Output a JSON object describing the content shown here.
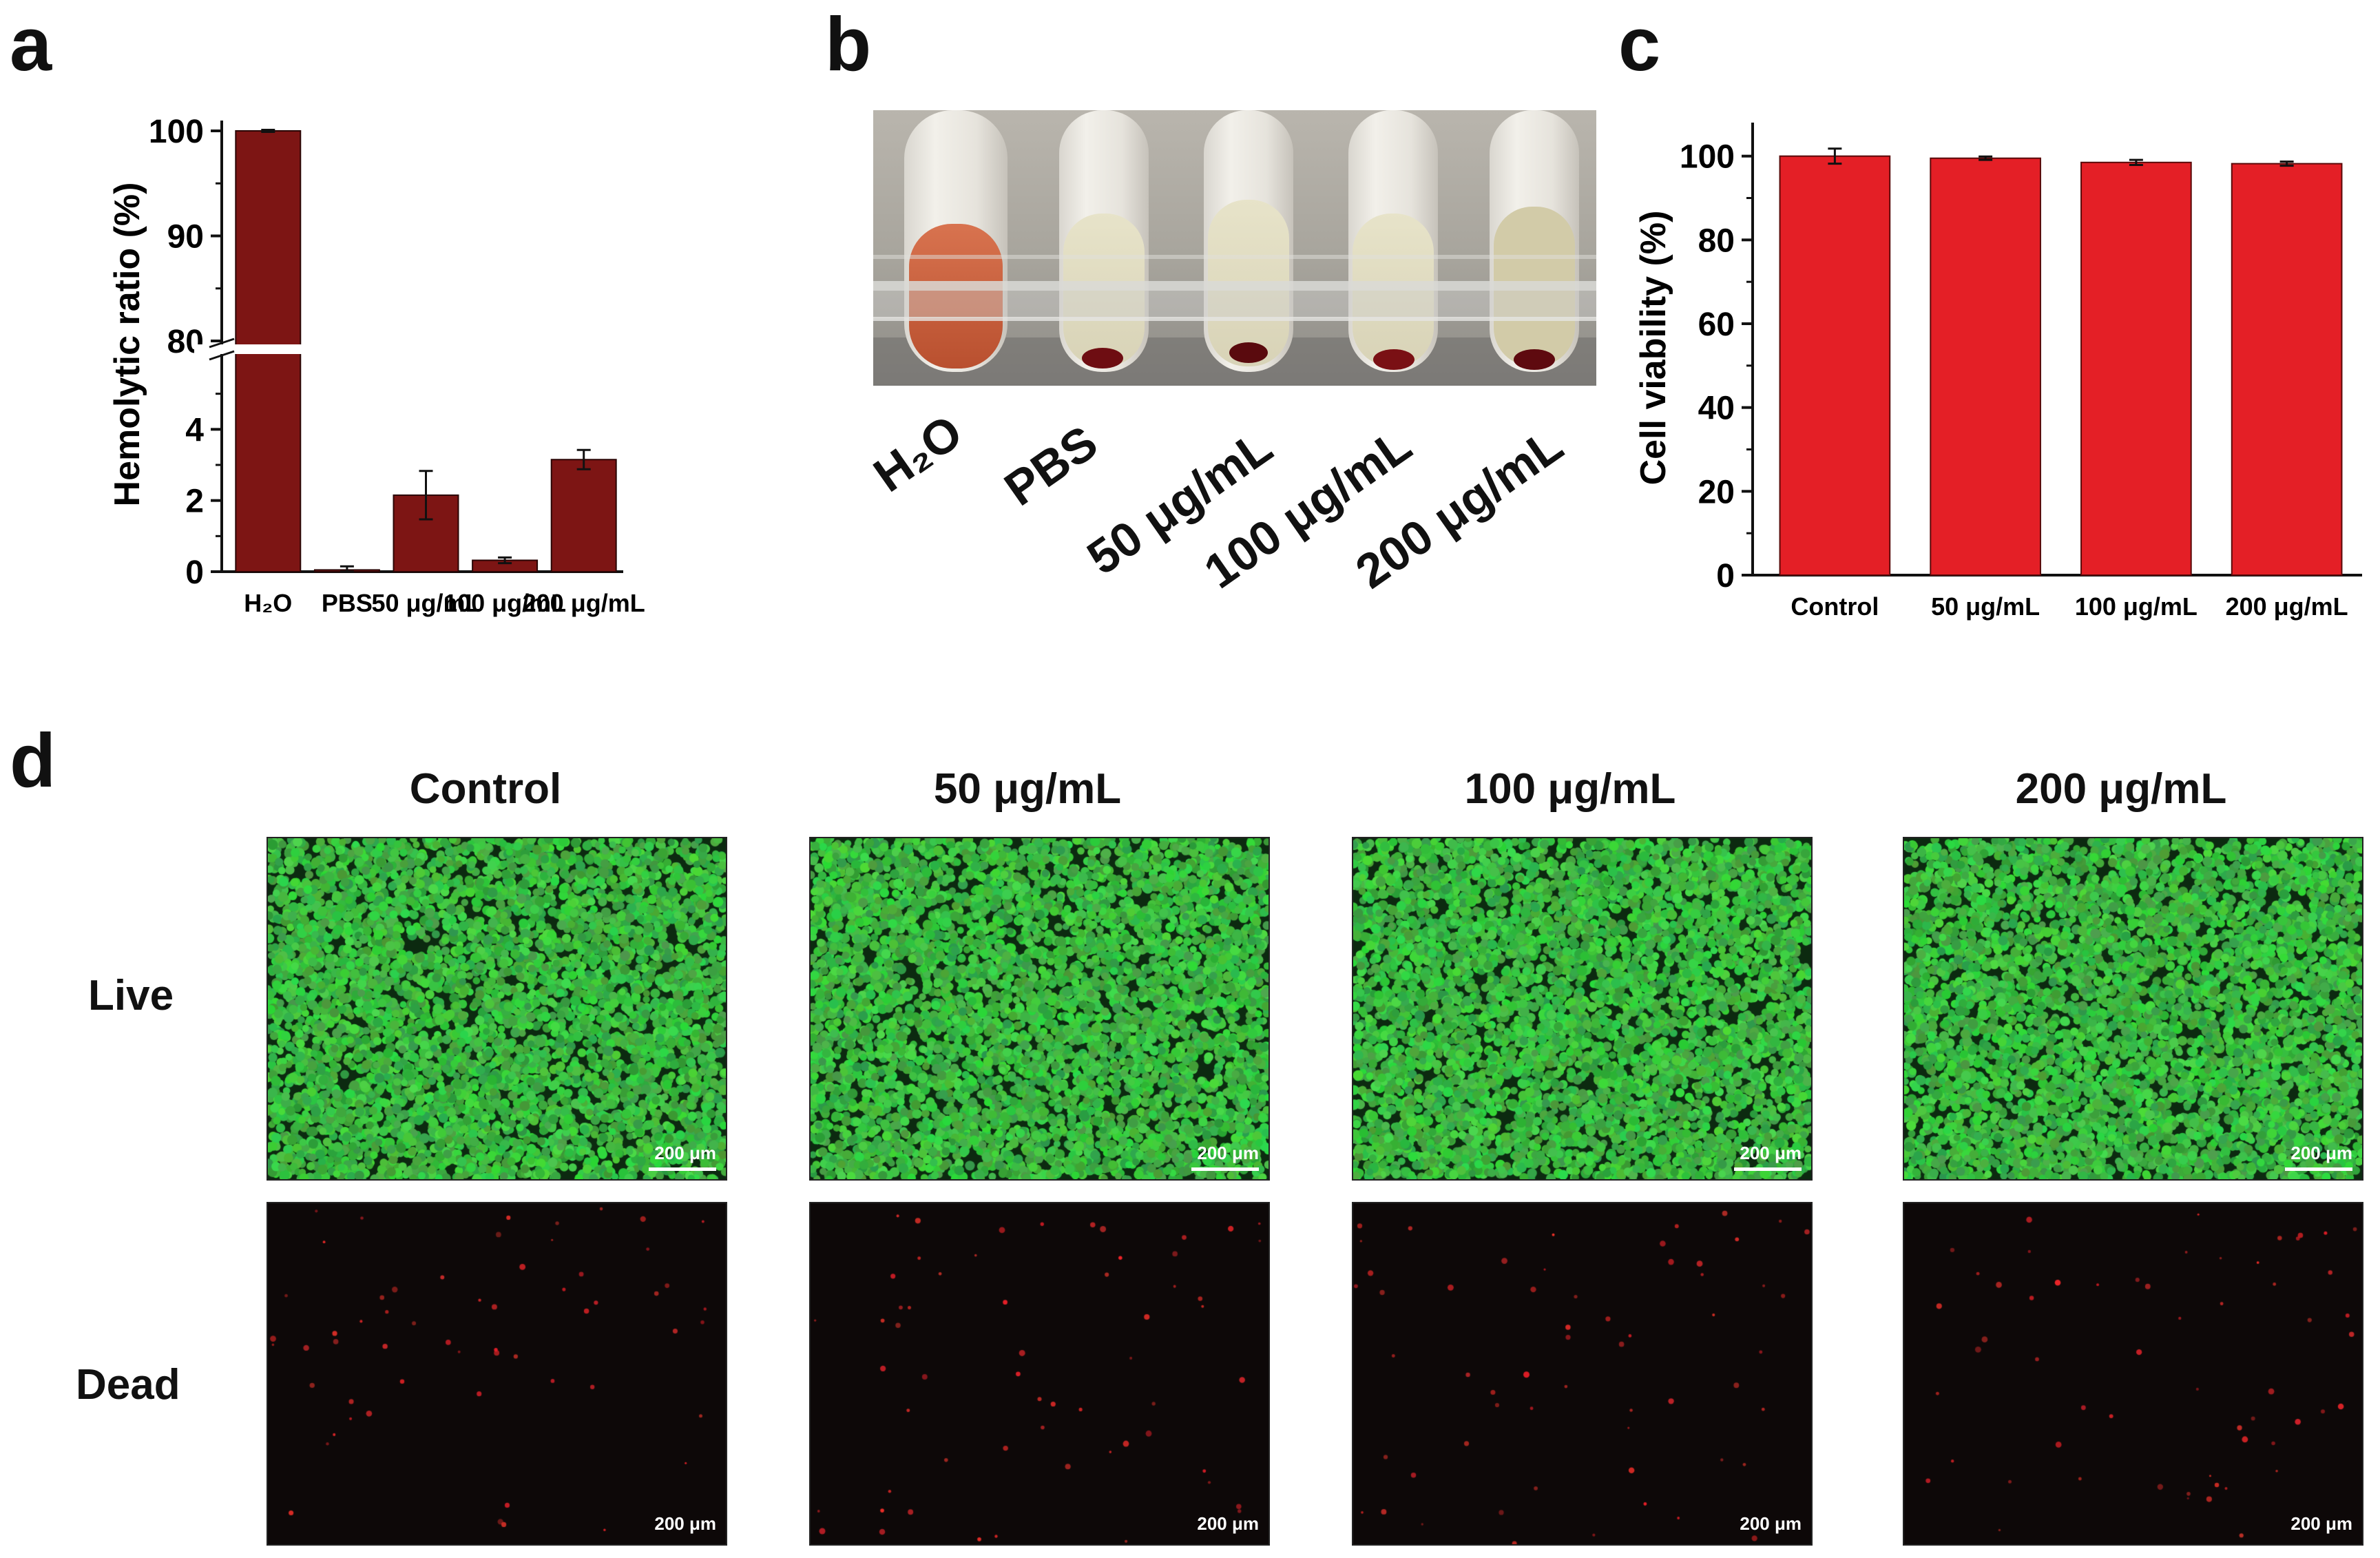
{
  "panels": {
    "a": "a",
    "b": "b",
    "c": "c",
    "d": "d"
  },
  "chart_data": [
    {
      "type": "bar",
      "panel": "a",
      "ylabel": "Hemolytic ratio (%)",
      "xlabel": "",
      "categories": [
        "H₂O",
        "PBS",
        "50 μg/mL",
        "100 μg/mL",
        "200 μg/mL"
      ],
      "values": [
        100,
        0.05,
        2.15,
        0.32,
        3.15
      ],
      "errors": [
        0.1,
        0.1,
        0.68,
        0.08,
        0.27
      ],
      "axis_break": {
        "lower": [
          0,
          6
        ],
        "upper": [
          80,
          100
        ]
      },
      "yticks_lower": [
        "0",
        "2",
        "4"
      ],
      "yticks_upper": [
        "80",
        "90",
        "100"
      ],
      "color": "#7d1514"
    },
    {
      "type": "bar",
      "panel": "c",
      "ylabel": "Cell viability (%)",
      "xlabel": "",
      "categories": [
        "Control",
        "50 μg/mL",
        "100 μg/mL",
        "200 μg/mL"
      ],
      "values": [
        100,
        99.5,
        98.5,
        98.2
      ],
      "errors": [
        1.8,
        0.4,
        0.6,
        0.5
      ],
      "ylim": [
        0,
        108
      ],
      "yticks": [
        "0",
        "20",
        "40",
        "60",
        "80",
        "100"
      ],
      "color": "#e41f26"
    }
  ],
  "photo_b": {
    "labels": [
      "H₂O",
      "PBS",
      "50 μg/mL",
      "100 μg/mL",
      "200 μg/mL"
    ]
  },
  "panel_d": {
    "columns": [
      "Control",
      "50 μg/mL",
      "100 μg/mL",
      "200 μg/mL"
    ],
    "rows": [
      "Live",
      "Dead"
    ],
    "scalebar": "200 μm",
    "live_color": "#2db84a",
    "dead_color": "#e0302a"
  }
}
